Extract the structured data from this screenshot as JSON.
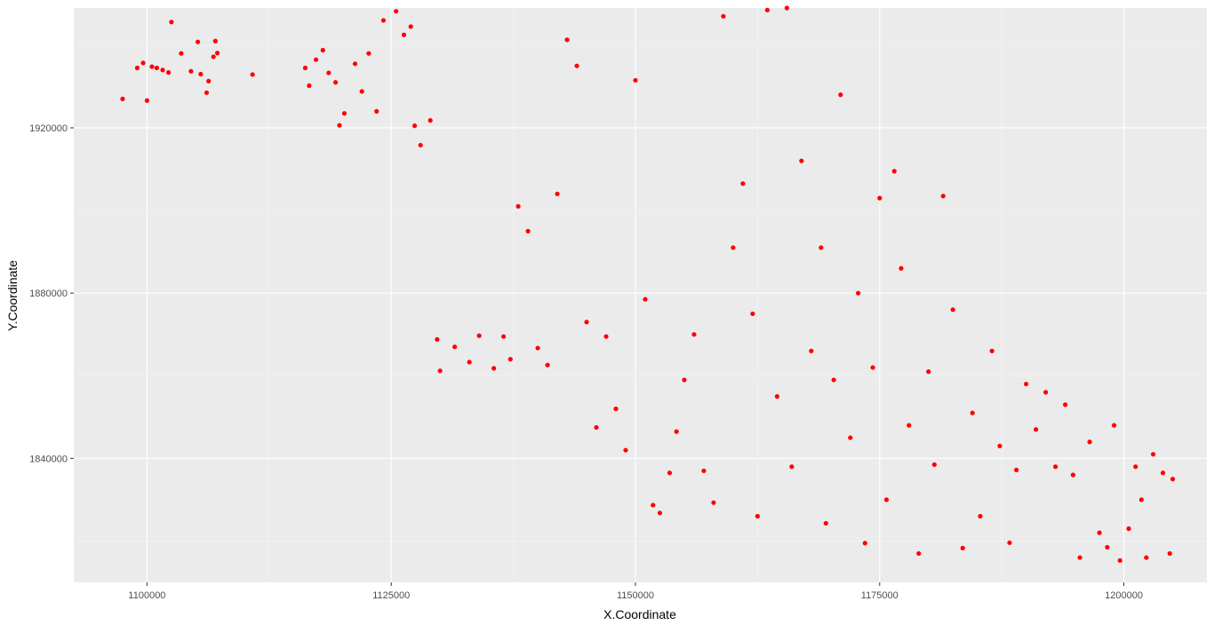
{
  "chart_data": {
    "type": "scatter",
    "title": "",
    "xlabel": "X.Coordinate",
    "ylabel": "Y.Coordinate",
    "xlim": [
      1092500,
      1208500
    ],
    "ylim": [
      1810000,
      1949000
    ],
    "x_ticks": [
      1100000,
      1125000,
      1150000,
      1175000,
      1200000
    ],
    "y_ticks": [
      1840000,
      1880000,
      1920000
    ],
    "x_tick_labels": [
      "1100000",
      "1125000",
      "1150000",
      "1175000",
      "1200000"
    ],
    "y_tick_labels": [
      "1840000",
      "1880000",
      "1920000"
    ],
    "grid": true,
    "legend": "none",
    "colors": {
      "point": "#ff0000",
      "panel": "#ebebeb",
      "grid_major": "#ffffff",
      "grid_minor": "#f5f5f5"
    },
    "series": [
      {
        "points": [
          [
            1097500,
            1927000
          ],
          [
            1099000,
            1934500
          ],
          [
            1099600,
            1935700
          ],
          [
            1100000,
            1926600
          ],
          [
            1100500,
            1934800
          ],
          [
            1101000,
            1934500
          ],
          [
            1101600,
            1934000
          ],
          [
            1102200,
            1933400
          ],
          [
            1102500,
            1945600
          ],
          [
            1103500,
            1938000
          ],
          [
            1104500,
            1933700
          ],
          [
            1105200,
            1940800
          ],
          [
            1105500,
            1933000
          ],
          [
            1106100,
            1928500
          ],
          [
            1106300,
            1931300
          ],
          [
            1106800,
            1937200
          ],
          [
            1107000,
            1941000
          ],
          [
            1107200,
            1938100
          ],
          [
            1110800,
            1932900
          ],
          [
            1116200,
            1934500
          ],
          [
            1116600,
            1930200
          ],
          [
            1117300,
            1936500
          ],
          [
            1118000,
            1938800
          ],
          [
            1118600,
            1933300
          ],
          [
            1119300,
            1931000
          ],
          [
            1119700,
            1920600
          ],
          [
            1120200,
            1923500
          ],
          [
            1121300,
            1935500
          ],
          [
            1122000,
            1928800
          ],
          [
            1122700,
            1938000
          ],
          [
            1123500,
            1924000
          ],
          [
            1124200,
            1946000
          ],
          [
            1125500,
            1948200
          ],
          [
            1126300,
            1942500
          ],
          [
            1127000,
            1944500
          ],
          [
            1127400,
            1920500
          ],
          [
            1128000,
            1915800
          ],
          [
            1129000,
            1921800
          ],
          [
            1129700,
            1868800
          ],
          [
            1130000,
            1861200
          ],
          [
            1131500,
            1867000
          ],
          [
            1133000,
            1863300
          ],
          [
            1134000,
            1869700
          ],
          [
            1135500,
            1861800
          ],
          [
            1136500,
            1869500
          ],
          [
            1137200,
            1864000
          ],
          [
            1138000,
            1901000
          ],
          [
            1139000,
            1895000
          ],
          [
            1140000,
            1866700
          ],
          [
            1141000,
            1862600
          ],
          [
            1142000,
            1904000
          ],
          [
            1143000,
            1941300
          ],
          [
            1144000,
            1935000
          ],
          [
            1145000,
            1873000
          ],
          [
            1146000,
            1847500
          ],
          [
            1147000,
            1869500
          ],
          [
            1148000,
            1852000
          ],
          [
            1149000,
            1842000
          ],
          [
            1150000,
            1931500
          ],
          [
            1151000,
            1878500
          ],
          [
            1151800,
            1828700
          ],
          [
            1152500,
            1826800
          ],
          [
            1153500,
            1836500
          ],
          [
            1154200,
            1846500
          ],
          [
            1155000,
            1859000
          ],
          [
            1156000,
            1870000
          ],
          [
            1157000,
            1837000
          ],
          [
            1158000,
            1829300
          ],
          [
            1159000,
            1947000
          ],
          [
            1160000,
            1891000
          ],
          [
            1161000,
            1906500
          ],
          [
            1162000,
            1875000
          ],
          [
            1162500,
            1826000
          ],
          [
            1163500,
            1948500
          ],
          [
            1164500,
            1855000
          ],
          [
            1165500,
            1949000
          ],
          [
            1166000,
            1838000
          ],
          [
            1167000,
            1912000
          ],
          [
            1168000,
            1866000
          ],
          [
            1169000,
            1891000
          ],
          [
            1169500,
            1824300
          ],
          [
            1170300,
            1859000
          ],
          [
            1171000,
            1928000
          ],
          [
            1172000,
            1845000
          ],
          [
            1172800,
            1880000
          ],
          [
            1173500,
            1819500
          ],
          [
            1174300,
            1862000
          ],
          [
            1175000,
            1903000
          ],
          [
            1175700,
            1830000
          ],
          [
            1176500,
            1909500
          ],
          [
            1177200,
            1886000
          ],
          [
            1178000,
            1848000
          ],
          [
            1179000,
            1817000
          ],
          [
            1180000,
            1861000
          ],
          [
            1180600,
            1838500
          ],
          [
            1181500,
            1903500
          ],
          [
            1182500,
            1876000
          ],
          [
            1183500,
            1818300
          ],
          [
            1184500,
            1851000
          ],
          [
            1185300,
            1826000
          ],
          [
            1186500,
            1866000
          ],
          [
            1187300,
            1843000
          ],
          [
            1188300,
            1819600
          ],
          [
            1189000,
            1837200
          ],
          [
            1190000,
            1858000
          ],
          [
            1191000,
            1847000
          ],
          [
            1192000,
            1856000
          ],
          [
            1193000,
            1838000
          ],
          [
            1194000,
            1853000
          ],
          [
            1194800,
            1836000
          ],
          [
            1195500,
            1816000
          ],
          [
            1196500,
            1844000
          ],
          [
            1197500,
            1822000
          ],
          [
            1198300,
            1818500
          ],
          [
            1199000,
            1848000
          ],
          [
            1199600,
            1815300
          ],
          [
            1200500,
            1823000
          ],
          [
            1201200,
            1838000
          ],
          [
            1201800,
            1830000
          ],
          [
            1202300,
            1816000
          ],
          [
            1203000,
            1841000
          ],
          [
            1204000,
            1836500
          ],
          [
            1204700,
            1817000
          ],
          [
            1205000,
            1835000
          ]
        ]
      }
    ]
  }
}
